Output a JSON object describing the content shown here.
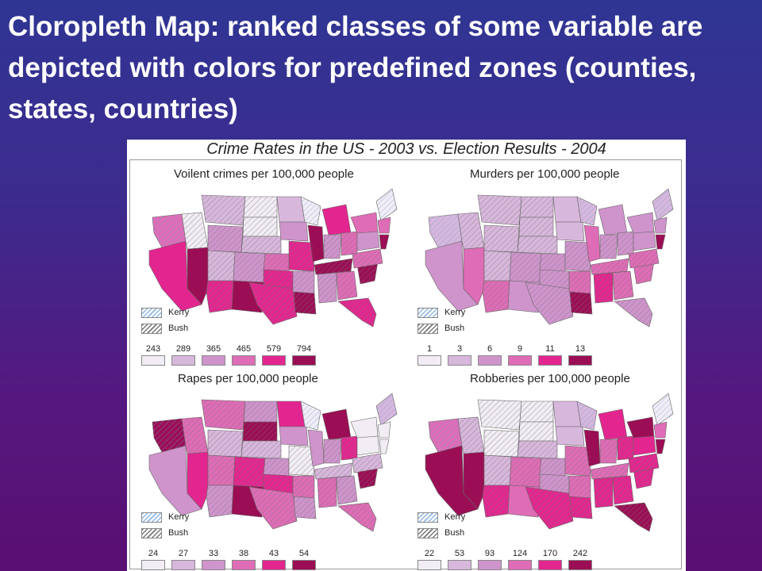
{
  "slide": {
    "title": "Cloropleth Map: ranked classes of some variable are depicted with colors for predefined zones (counties, states, countries)"
  },
  "figure": {
    "title": "Crime Rates in the US - 2003 vs. Election Results - 2004",
    "legend_kerry": "Kerry",
    "legend_bush": "Bush"
  },
  "panels": [
    {
      "title": "Voilent crimes per 100,000 people",
      "classes": [
        "243",
        "289",
        "365",
        "465",
        "579",
        "794"
      ]
    },
    {
      "title": "Murders per 100,000 people",
      "classes": [
        "1",
        "3",
        "6",
        "9",
        "11",
        "13"
      ]
    },
    {
      "title": "Rapes per 100,000 people",
      "classes": [
        "24",
        "27",
        "33",
        "38",
        "43",
        "54"
      ]
    },
    {
      "title": "Robberies per 100,000 people",
      "classes": [
        "22",
        "53",
        "93",
        "124",
        "170",
        "242"
      ]
    }
  ],
  "colors": {
    "class_scale": [
      "#f2edf5",
      "#d8b7dc",
      "#cf94cc",
      "#df6cb6",
      "#e3268f",
      "#9b0e55"
    ],
    "kerry_hatch": "#8fb7e3",
    "bush_hatch": "#777777"
  }
}
